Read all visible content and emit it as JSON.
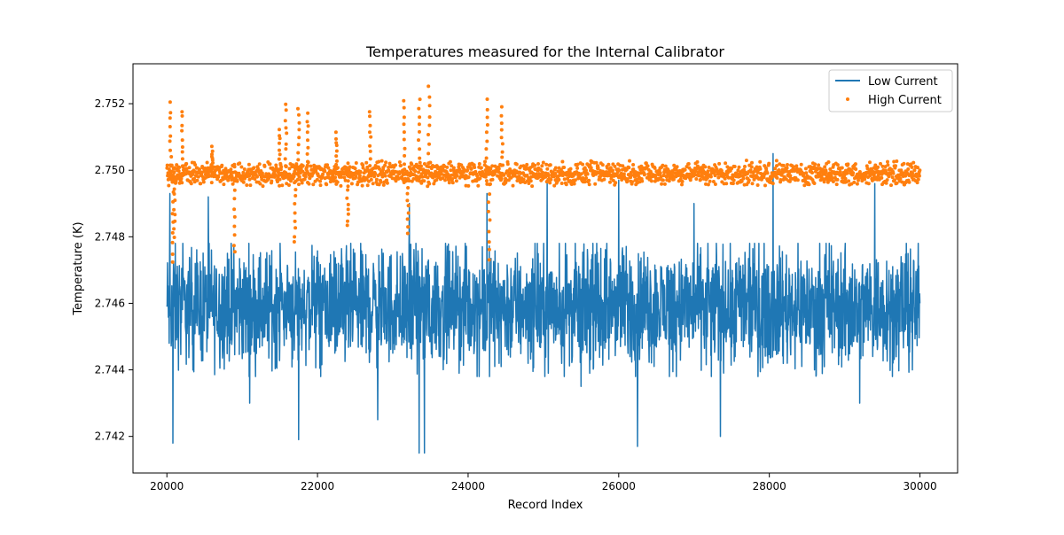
{
  "chart_data": {
    "type": "line",
    "title": "Temperatures measured for the Internal Calibrator",
    "xlabel": "Record Index",
    "ylabel": "Temperature (K)",
    "xlim": [
      19550,
      30500
    ],
    "ylim": [
      2.7409,
      2.7532
    ],
    "x_ticks": [
      20000,
      22000,
      24000,
      26000,
      28000,
      30000
    ],
    "x_tick_labels": [
      "20000",
      "22000",
      "24000",
      "26000",
      "28000",
      "30000"
    ],
    "y_ticks": [
      2.742,
      2.744,
      2.746,
      2.748,
      2.75,
      2.752
    ],
    "y_tick_labels": [
      "2.742",
      "2.744",
      "2.746",
      "2.748",
      "2.750",
      "2.752"
    ],
    "grid": false,
    "legend_position": "top-right",
    "series": [
      {
        "name": "Low Current",
        "kind": "line",
        "color": "#1f77b4",
        "x_range": [
          20000,
          30000
        ],
        "typical_mean": 2.7459,
        "typical_band": [
          2.7445,
          2.7475
        ],
        "x": [
          20000,
          20040,
          20080,
          20200,
          20550,
          21100,
          21750,
          22300,
          22800,
          23220,
          23350,
          23420,
          23500,
          24100,
          24250,
          24800,
          25050,
          25500,
          26000,
          26250,
          26800,
          27000,
          27350,
          27800,
          28050,
          28600,
          29200,
          29400,
          29900,
          30000
        ],
        "y": [
          2.7459,
          2.7493,
          2.7418,
          2.746,
          2.7492,
          2.743,
          2.7419,
          2.746,
          2.7425,
          2.749,
          2.7415,
          2.7415,
          2.7452,
          2.746,
          2.7493,
          2.746,
          2.7496,
          2.7435,
          2.7497,
          2.7417,
          2.746,
          2.749,
          2.742,
          2.746,
          2.7505,
          2.744,
          2.743,
          2.7496,
          2.744,
          2.746
        ]
      },
      {
        "name": "High Current",
        "kind": "scatter",
        "color": "#ff7f0e",
        "x_range": [
          20000,
          30000
        ],
        "typical_mean": 2.7499,
        "typical_band": [
          2.7495,
          2.7503
        ],
        "x": [
          20050,
          20080,
          20100,
          20200,
          20600,
          20900,
          21500,
          21580,
          21700,
          21750,
          21870,
          22250,
          22400,
          22700,
          23150,
          23200,
          23350,
          23480,
          24250,
          24280,
          24450
        ],
        "y": [
          2.752,
          2.7472,
          2.748,
          2.7518,
          2.7507,
          2.7475,
          2.7512,
          2.752,
          2.7478,
          2.7519,
          2.7517,
          2.7511,
          2.7483,
          2.7518,
          2.7521,
          2.7481,
          2.7521,
          2.7525,
          2.7521,
          2.7473,
          2.7519
        ]
      }
    ]
  }
}
